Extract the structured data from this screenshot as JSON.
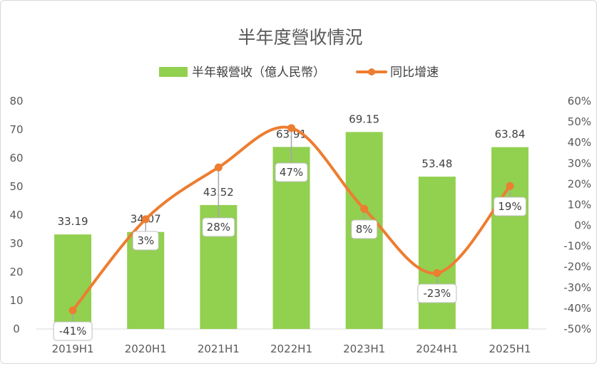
{
  "chart_data": {
    "type": "bar",
    "title": "半年度營收情況",
    "categories": [
      "2019H1",
      "2020H1",
      "2021H1",
      "2022H1",
      "2023H1",
      "2024H1",
      "2025H1"
    ],
    "series": [
      {
        "name": "半年報營收（億人民幣）",
        "type": "bar",
        "axis": "left",
        "color": "#92d050",
        "values": [
          33.19,
          34.07,
          43.52,
          63.91,
          69.15,
          53.48,
          63.84
        ],
        "labels": [
          "33.19",
          "34.07",
          "43.52",
          "63.91",
          "69.15",
          "53.48",
          "63.84"
        ]
      },
      {
        "name": "同比增速",
        "type": "line",
        "axis": "right",
        "color": "#ed7d31",
        "values": [
          -41,
          3,
          28,
          47,
          8,
          -23,
          19
        ],
        "labels": [
          "-41%",
          "3%",
          "28%",
          "47%",
          "8%",
          "-23%",
          "19%"
        ]
      }
    ],
    "y_left": {
      "min": 0,
      "max": 80,
      "step": 10,
      "ticks": [
        "0",
        "10",
        "20",
        "30",
        "40",
        "50",
        "60",
        "70",
        "80"
      ]
    },
    "y_right": {
      "min": -50,
      "max": 60,
      "step": 10,
      "ticks": [
        "-50%",
        "-40%",
        "-30%",
        "-20%",
        "-10%",
        "0%",
        "10%",
        "20%",
        "30%",
        "40%",
        "50%",
        "60%"
      ]
    },
    "legend_position": "top",
    "grid": false
  }
}
